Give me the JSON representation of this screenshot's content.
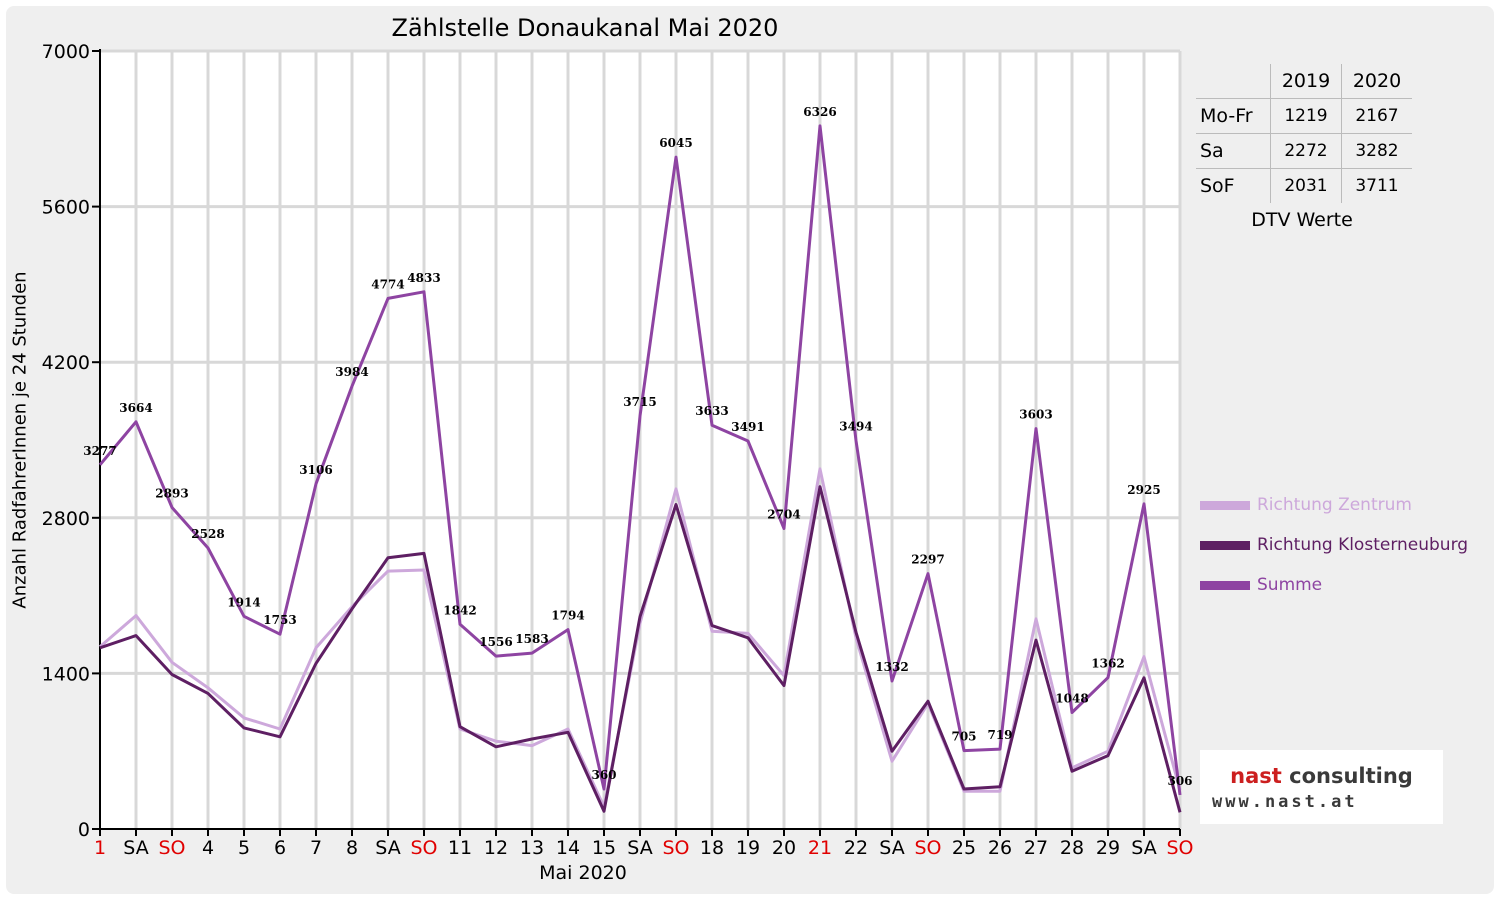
{
  "chart_data": {
    "type": "line",
    "title": "Zählstelle Donaukanal Mai 2020",
    "xlabel": "Mai 2020",
    "ylabel": "Anzahl RadfahrerInnen je 24 Stunden",
    "ylim": [
      0,
      7000
    ],
    "yticks": [
      "0",
      "1400",
      "2800",
      "4200",
      "5600",
      "7000"
    ],
    "grid": true,
    "legend_position": "right",
    "categories": [
      "1",
      "SA",
      "SO",
      "4",
      "5",
      "6",
      "7",
      "8",
      "SA",
      "SO",
      "11",
      "12",
      "13",
      "14",
      "15",
      "SA",
      "SO",
      "18",
      "19",
      "20",
      "21",
      "22",
      "SA",
      "SO",
      "25",
      "26",
      "27",
      "28",
      "29",
      "SA",
      "SO"
    ],
    "red_categories": [
      0,
      2,
      9,
      16,
      20,
      23,
      30
    ],
    "series": [
      {
        "name": "Richtung Zentrum",
        "color": "#cda8db",
        "values": [
          1640,
          1920,
          1500,
          1270,
          1000,
          900,
          1630,
          2000,
          2320,
          2330,
          900,
          790,
          750,
          900,
          200,
          1850,
          3060,
          1780,
          1760,
          1380,
          3240,
          1720,
          610,
          1130,
          340,
          340,
          1890,
          550,
          700,
          1550,
          350
        ]
      },
      {
        "name": "Richtung Klosterneuburg",
        "color": "#5e1f63",
        "values": [
          1630,
          1740,
          1390,
          1220,
          910,
          830,
          1490,
          1980,
          2440,
          2480,
          920,
          740,
          810,
          870,
          160,
          1910,
          2920,
          1830,
          1720,
          1290,
          3080,
          1770,
          700,
          1150,
          360,
          380,
          1700,
          520,
          660,
          1360,
          150
        ]
      },
      {
        "name": "Summe",
        "color": "#8e44a2",
        "values": [
          3277,
          3664,
          2893,
          2528,
          1914,
          1753,
          3106,
          3984,
          4774,
          4833,
          1842,
          1556,
          1583,
          1794,
          360,
          3715,
          6045,
          3633,
          3491,
          2704,
          6326,
          3494,
          1332,
          2297,
          705,
          719,
          3603,
          1048,
          1362,
          2925,
          306
        ]
      }
    ],
    "data_labels": [
      "3277",
      "3664",
      "2893",
      "2528",
      "1914",
      "1753",
      "3106",
      "3984",
      "4774",
      "4833",
      "1842",
      "1556",
      "1583",
      "1794",
      "360",
      "3715",
      "6045",
      "3633",
      "3491",
      "2704",
      "6326",
      "3494",
      "1332",
      "2297",
      "705",
      "719",
      "3603",
      "1048",
      "1362",
      "2925",
      "306"
    ]
  },
  "dtv_table": {
    "header": [
      "",
      "2019",
      "2020"
    ],
    "rows": [
      {
        "label": "Mo-Fr",
        "v2019": "1219",
        "v2020": "2167"
      },
      {
        "label": "Sa",
        "v2019": "2272",
        "v2020": "3282"
      },
      {
        "label": "SoF",
        "v2019": "2031",
        "v2020": "3711"
      }
    ],
    "caption": "DTV Werte"
  },
  "logo": {
    "name_part1": "nast",
    "name_part2": " consulting",
    "url": "www.nast.at"
  },
  "colors": {
    "weekend_label": "#e00000",
    "axis": "#000000",
    "grid": "#d8d8d8"
  }
}
